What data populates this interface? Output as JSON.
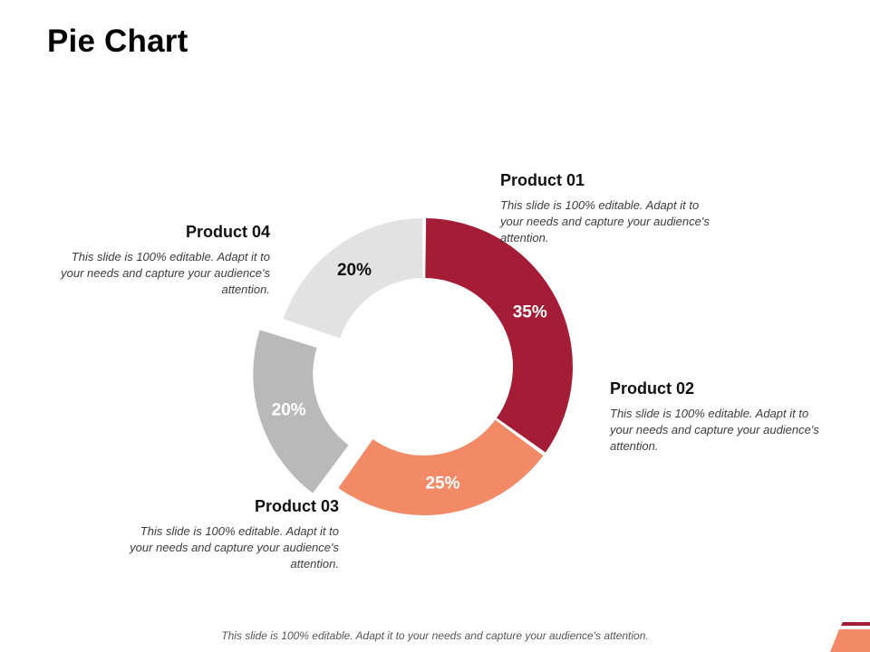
{
  "page": {
    "title": "Pie Chart",
    "footer": "This slide is 100% editable. Adapt it to your needs and capture your audience's attention."
  },
  "chart_data": {
    "type": "pie",
    "variant": "donut",
    "title": "Pie Chart",
    "categories": [
      "Product 01",
      "Product 02",
      "Product 03",
      "Product 04"
    ],
    "values": [
      20,
      35,
      25,
      20
    ],
    "data_labels": [
      "20%",
      "35%",
      "25%",
      "20%"
    ],
    "colors": [
      "#e2e2e2",
      "#a51c36",
      "#f28a67",
      "#b9b9b9"
    ],
    "label_colors": [
      "#111111",
      "#ffffff",
      "#ffffff",
      "#ffffff"
    ],
    "exploded": [
      false,
      false,
      false,
      true
    ]
  },
  "labels": [
    {
      "name": "Product 01",
      "desc": "This slide is 100% editable. Adapt it to your needs and capture your audience's attention."
    },
    {
      "name": "Product 02",
      "desc": "This slide is 100% editable. Adapt it to your needs and capture your audience's attention."
    },
    {
      "name": "Product 03",
      "desc": "This slide is 100% editable. Adapt it to your needs and capture your audience's attention."
    },
    {
      "name": "Product 04",
      "desc": "This slide is 100% editable. Adapt it to your needs and capture your audience's attention."
    }
  ],
  "colors": {
    "accent_dark": "#a51c36",
    "accent_light": "#f28a67"
  }
}
